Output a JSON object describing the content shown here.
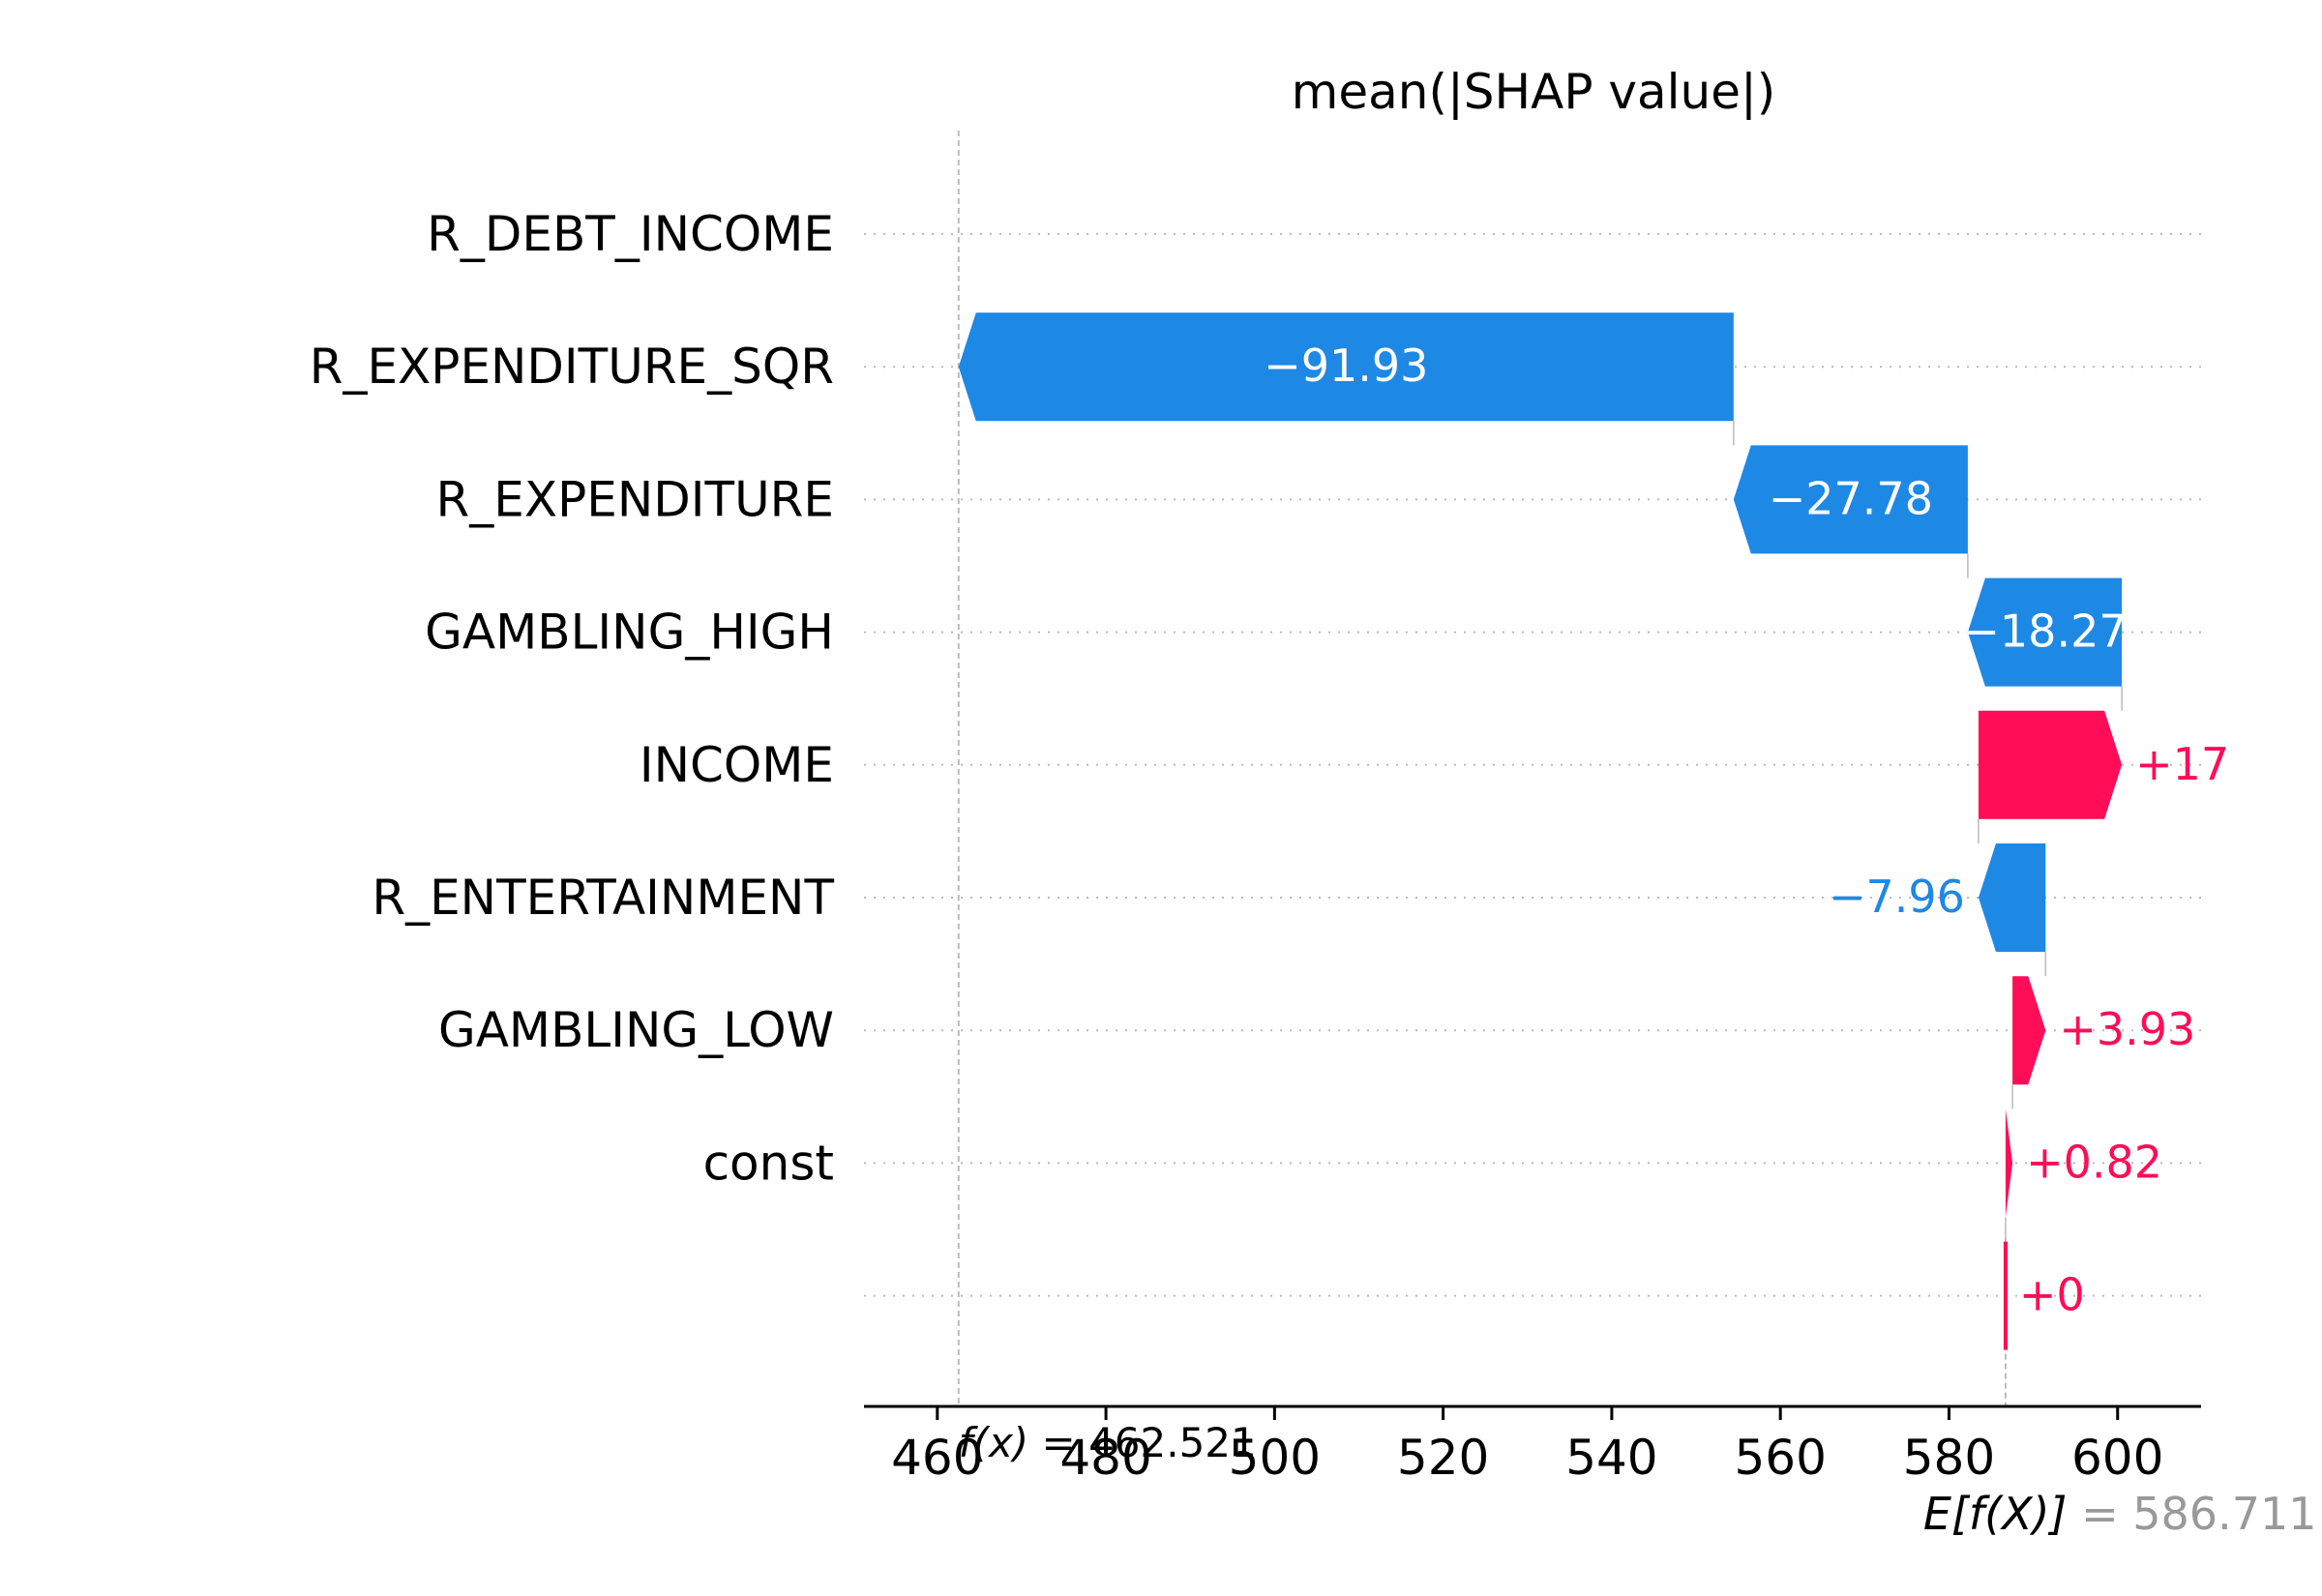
{
  "chart_data": {
    "type": "waterfall",
    "title": "mean(|SHAP value|)",
    "categories": [
      "R_DEBT_INCOME",
      "R_EXPENDITURE_SQR",
      "R_EXPENDITURE",
      "GAMBLING_HIGH",
      "INCOME",
      "R_ENTERTAINMENT",
      "GAMBLING_LOW",
      "const",
      ""
    ],
    "values": [
      null,
      -91.93,
      -27.78,
      -18.27,
      17,
      -7.96,
      3.93,
      0.82,
      0
    ],
    "value_labels": [
      "",
      "−91.93",
      "−27.78",
      "−18.27",
      "+17",
      "−7.96",
      "+3.93",
      "+0.82",
      "+0"
    ],
    "base_value": 586.711,
    "output_value": 462.521,
    "xticks": [
      460,
      480,
      500,
      520,
      540,
      560,
      580,
      600
    ],
    "xlim": [
      451.3,
      609.9
    ],
    "fx_label": "f(x)",
    "fx_value_text": "= 462.521",
    "ex_label": "E[f(X)]",
    "ex_value_text": "= 586.711",
    "grid": true,
    "colors": {
      "positive": "#ff0d57",
      "negative": "#1e88e5",
      "axis": "#000000",
      "grid": "#cccccc",
      "muted": "#999999"
    }
  }
}
